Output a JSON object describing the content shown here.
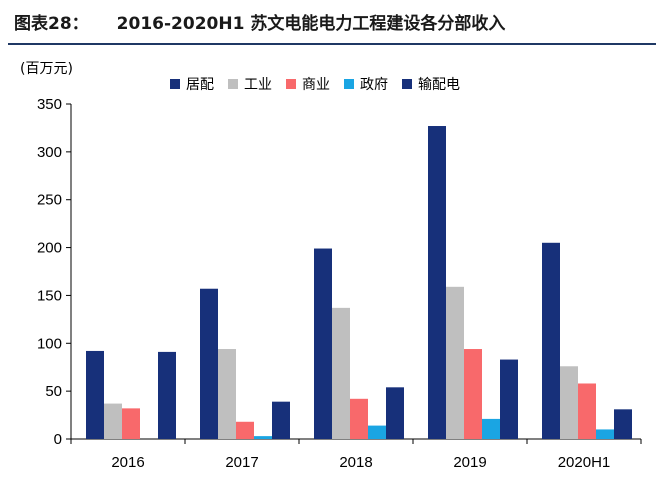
{
  "header": {
    "figure_label": "图表28：",
    "title": "2016-2020H1 苏文电能电力工程建设各分部收入"
  },
  "chart_data": {
    "type": "bar",
    "unit_label": "(百万元)",
    "categories": [
      "2016",
      "2017",
      "2018",
      "2019",
      "2020H1"
    ],
    "series": [
      {
        "name": "居配",
        "color": "#17307a",
        "values": [
          92,
          157,
          199,
          327,
          205
        ]
      },
      {
        "name": "工业",
        "color": "#bfbfbf",
        "values": [
          37,
          94,
          137,
          159,
          76
        ]
      },
      {
        "name": "商业",
        "color": "#f8696b",
        "values": [
          32,
          18,
          42,
          94,
          58
        ]
      },
      {
        "name": "政府",
        "color": "#1aa5e3",
        "values": [
          0,
          3,
          14,
          21,
          10
        ]
      },
      {
        "name": "输配电",
        "color": "#17307a",
        "values": [
          91,
          39,
          54,
          83,
          31
        ]
      }
    ],
    "yticks": [
      "0",
      "50",
      "100",
      "150",
      "200",
      "250",
      "300",
      "350"
    ],
    "ylim": [
      0,
      350
    ],
    "grid": false,
    "legend": "top"
  }
}
